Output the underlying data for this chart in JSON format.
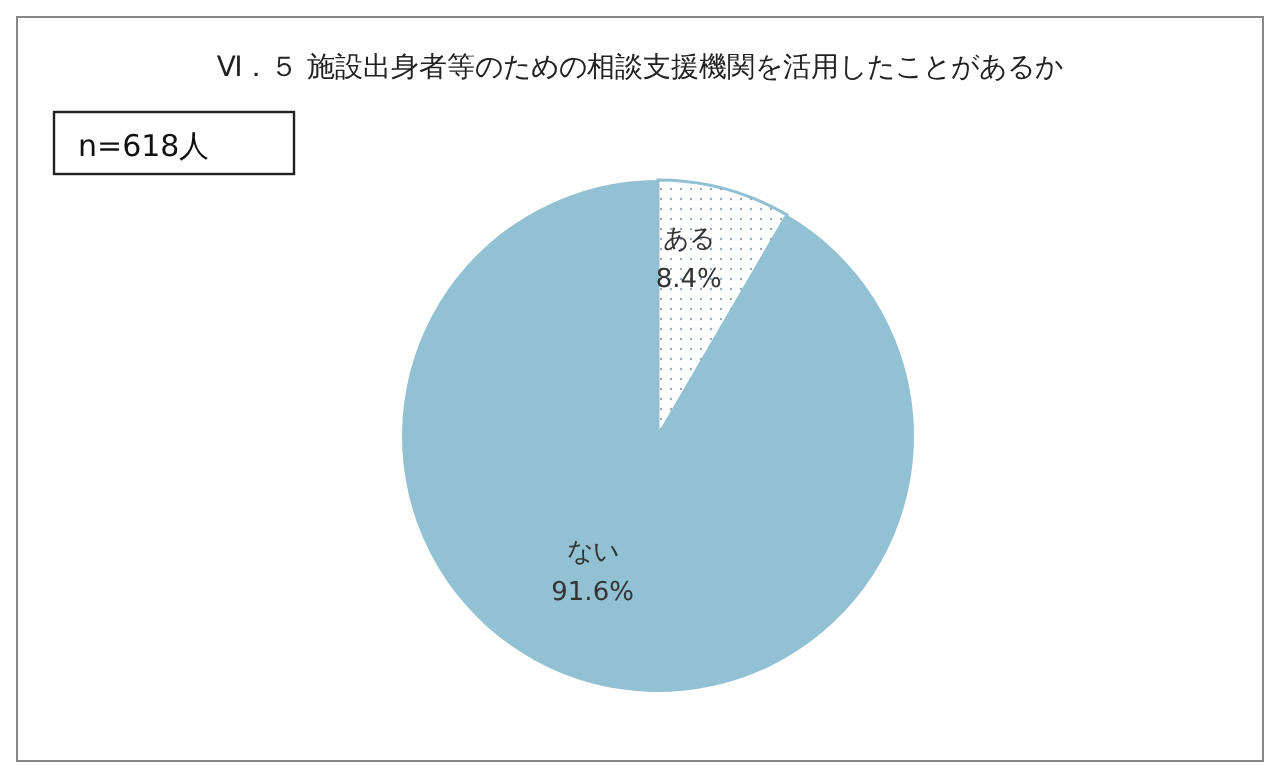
{
  "chart_data": {
    "type": "pie",
    "title": "Ⅵ．５ 施設出身者等のための相談支援機関を活用したことがあるか",
    "annotations": [
      "n=618人"
    ],
    "categories": [
      "ある",
      "ない"
    ],
    "values": [
      8.4,
      91.6
    ],
    "colors": [
      "#ffffff",
      "#92c1d4"
    ],
    "value_labels": [
      "8.4%",
      "91.6%"
    ],
    "legend": false
  }
}
